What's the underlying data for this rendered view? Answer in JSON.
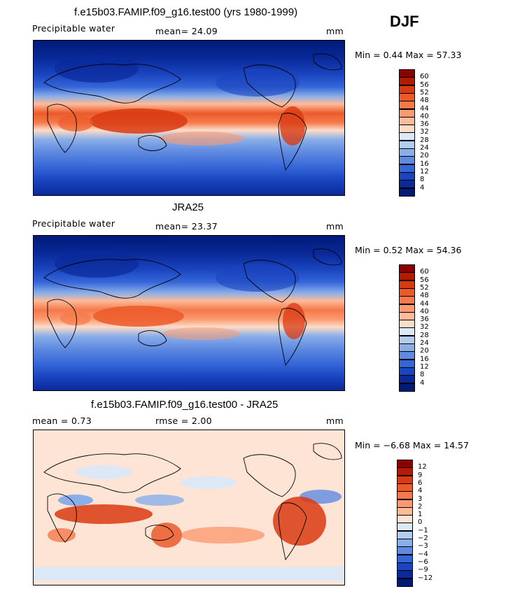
{
  "season": "DJF",
  "panels": [
    {
      "title": "f.e15b03.FAMIP.f09_g16.test00 (yrs 1980-1999)",
      "field": "Precipitable water",
      "stat": "mean=  24.09",
      "units": "mm",
      "minmax": "Min =   0.44 Max =  57.33",
      "levels": [
        "60",
        "56",
        "52",
        "48",
        "44",
        "40",
        "36",
        "32",
        "28",
        "24",
        "20",
        "16",
        "12",
        "8",
        "4"
      ],
      "colors": [
        "#8b0000",
        "#b51a00",
        "#d93a12",
        "#ec5a2a",
        "#f5794a",
        "#fb9a70",
        "#fdbb9a",
        "#fddcc8",
        "#dce8f6",
        "#b4ccef",
        "#8aaee8",
        "#5f8ae0",
        "#3566d8",
        "#1a45c0",
        "#0a2a9a",
        "#001a78"
      ]
    },
    {
      "title": "JRA25",
      "field": "Precipitable water",
      "stat": "mean=  23.37",
      "units": "mm",
      "minmax": "Min =   0.52 Max =  54.36",
      "levels": [
        "60",
        "56",
        "52",
        "48",
        "44",
        "40",
        "36",
        "32",
        "28",
        "24",
        "20",
        "16",
        "12",
        "8",
        "4"
      ],
      "colors": [
        "#8b0000",
        "#b51a00",
        "#d93a12",
        "#ec5a2a",
        "#f5794a",
        "#fb9a70",
        "#fdbb9a",
        "#fddcc8",
        "#dce8f6",
        "#b4ccef",
        "#8aaee8",
        "#5f8ae0",
        "#3566d8",
        "#1a45c0",
        "#0a2a9a",
        "#001a78"
      ]
    },
    {
      "title": "f.e15b03.FAMIP.f09_g16.test00 - JRA25",
      "field": "mean =    0.73",
      "stat": "rmse =    2.00",
      "units": "mm",
      "minmax": "Min =  −6.68 Max =  14.57",
      "levels": [
        "12",
        "9",
        "6",
        "4",
        "3",
        "2",
        "1",
        "0",
        "−1",
        "−2",
        "−3",
        "−4",
        "−6",
        "−9",
        "−12"
      ],
      "colors": [
        "#8b0000",
        "#b51a00",
        "#d93a12",
        "#ec5a2a",
        "#f5794a",
        "#fb9a70",
        "#fdbb9a",
        "#fde4d4",
        "#dce8f6",
        "#b4ccef",
        "#8aaee8",
        "#5f8ae0",
        "#3566d8",
        "#1a45c0",
        "#0a2a9a",
        "#001a78"
      ]
    }
  ]
}
